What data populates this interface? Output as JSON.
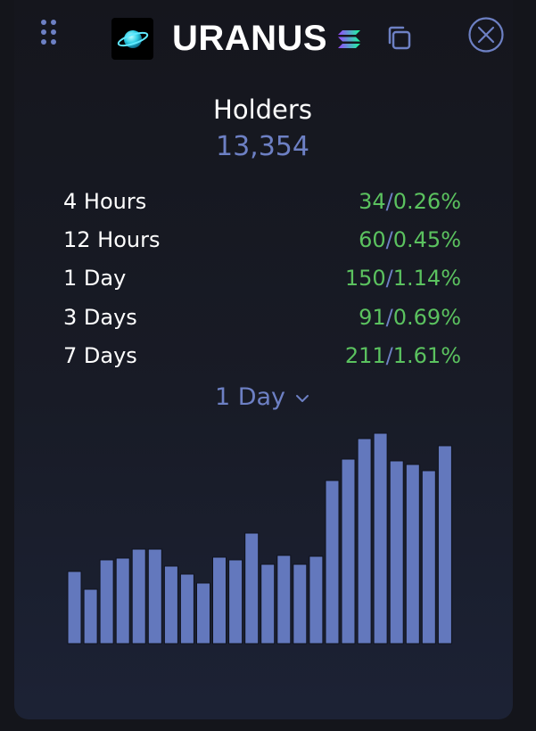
{
  "header": {
    "token_name": "URANUS",
    "logo_icon": "ringed-planet-icon",
    "chain_icon": "solana-icon",
    "copy_icon": "copy-icon",
    "close_icon": "close-icon",
    "drag_icon": "drag-handle-icon"
  },
  "holders": {
    "label": "Holders",
    "value": "13,354"
  },
  "changes": [
    {
      "period": "4 Hours",
      "count": "34",
      "separator": "/",
      "percent": "0.26%"
    },
    {
      "period": "12 Hours",
      "count": "60",
      "separator": "/",
      "percent": "0.45%"
    },
    {
      "period": "1 Day",
      "count": "150",
      "separator": "/",
      "percent": "1.14%"
    },
    {
      "period": "3 Days",
      "count": "91",
      "separator": "/",
      "percent": "0.69%"
    },
    {
      "period": "7 Days",
      "count": "211",
      "separator": "/",
      "percent": "1.61%"
    }
  ],
  "period_select": {
    "value": "1 Day",
    "icon": "chevron-down-icon"
  },
  "colors": {
    "accent": "#6d80c4",
    "positive": "#5bc25f",
    "bar": "#6378bd",
    "background": "#14151b"
  },
  "chart_data": {
    "type": "bar",
    "values": [
      81,
      61,
      94,
      96,
      106,
      106,
      87,
      78,
      68,
      97,
      94,
      124,
      89,
      99,
      89,
      98,
      183,
      207,
      230,
      236,
      205,
      201,
      194,
      222
    ],
    "ylim": [
      0,
      240
    ],
    "grid": false,
    "legend": "none"
  }
}
